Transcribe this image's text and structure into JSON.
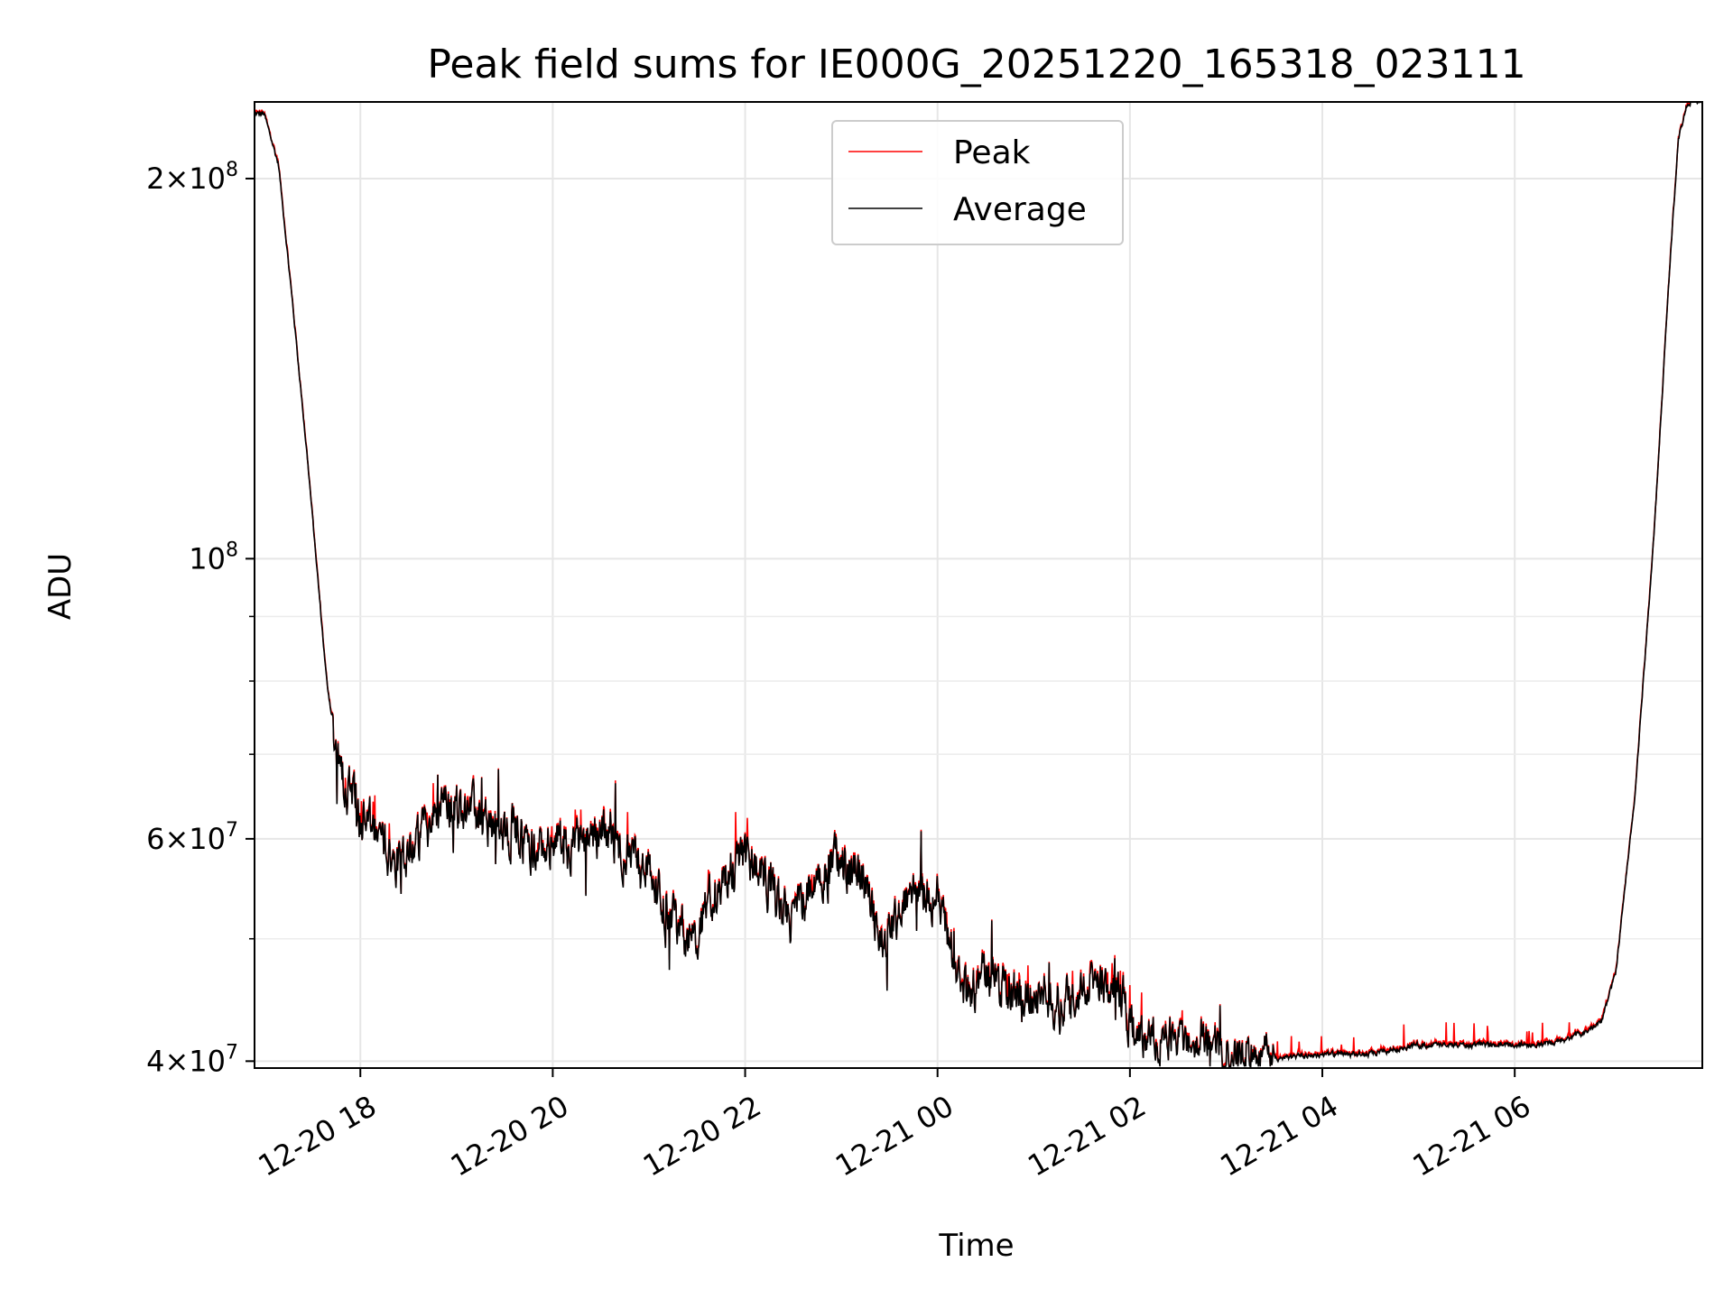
{
  "chart_data": {
    "type": "line",
    "title": "Peak field sums for IE000G_20251220_165318_023111",
    "xlabel": "Time",
    "ylabel": "ADU",
    "yscale": "log",
    "xlim_hours": [
      16.9,
      31.95
    ],
    "ylim": [
      39500000,
      230000000
    ],
    "grid": true,
    "legend_position": "top-center",
    "x_ticks": [
      {
        "hour": 18,
        "label": "12-20 18"
      },
      {
        "hour": 20,
        "label": "12-20 20"
      },
      {
        "hour": 22,
        "label": "12-20 22"
      },
      {
        "hour": 24,
        "label": "12-21 00"
      },
      {
        "hour": 26,
        "label": "12-21 02"
      },
      {
        "hour": 28,
        "label": "12-21 04"
      },
      {
        "hour": 30,
        "label": "12-21 06"
      }
    ],
    "y_major_ticks": [
      {
        "value": 40000000,
        "mantissa": "4",
        "exp": "7"
      },
      {
        "value": 60000000,
        "mantissa": "6",
        "exp": "7"
      },
      {
        "value": 100000000,
        "mantissa": "",
        "exp": "8"
      },
      {
        "value": 200000000,
        "mantissa": "2",
        "exp": "8"
      }
    ],
    "y_minor_ticks": [
      50000000,
      70000000,
      80000000,
      90000000
    ],
    "series": [
      {
        "name": "Peak",
        "color": "#ff0000"
      },
      {
        "name": "Average",
        "color": "#000000"
      }
    ],
    "average_anchors": [
      [
        16.9,
        225000000.0
      ],
      [
        17.0,
        225000000.0
      ],
      [
        17.15,
        205000000.0
      ],
      [
        17.3,
        158000000.0
      ],
      [
        17.45,
        120000000.0
      ],
      [
        17.55,
        98000000.0
      ],
      [
        17.65,
        80000000.0
      ],
      [
        17.75,
        71000000.0
      ],
      [
        17.85,
        66500000.0
      ],
      [
        18.0,
        62500000.0
      ],
      [
        18.2,
        60000000.0
      ],
      [
        18.4,
        58000000.0
      ],
      [
        18.6,
        60000000.0
      ],
      [
        18.8,
        63000000.0
      ],
      [
        19.0,
        64000000.0
      ],
      [
        19.3,
        62000000.0
      ],
      [
        19.6,
        61000000.0
      ],
      [
        19.8,
        59000000.0
      ],
      [
        20.0,
        60000000.0
      ],
      [
        20.2,
        59000000.0
      ],
      [
        20.4,
        60000000.0
      ],
      [
        20.55,
        62000000.0
      ],
      [
        20.75,
        58000000.0
      ],
      [
        21.0,
        56000000.0
      ],
      [
        21.2,
        52000000.0
      ],
      [
        21.45,
        50000000.0
      ],
      [
        21.65,
        54000000.0
      ],
      [
        21.85,
        57000000.0
      ],
      [
        22.0,
        58000000.0
      ],
      [
        22.2,
        56000000.0
      ],
      [
        22.45,
        51500000.0
      ],
      [
        22.7,
        55000000.0
      ],
      [
        22.95,
        57500000.0
      ],
      [
        23.2,
        56000000.0
      ],
      [
        23.45,
        50000000.0
      ],
      [
        23.7,
        54000000.0
      ],
      [
        24.0,
        54000000.0
      ],
      [
        24.15,
        49000000.0
      ],
      [
        24.3,
        45000000.0
      ],
      [
        24.5,
        47000000.0
      ],
      [
        24.75,
        46000000.0
      ],
      [
        24.9,
        44500000.0
      ],
      [
        25.1,
        45500000.0
      ],
      [
        25.3,
        44000000.0
      ],
      [
        25.6,
        46000000.0
      ],
      [
        25.85,
        46500000.0
      ],
      [
        26.0,
        43000000.0
      ],
      [
        26.2,
        41500000.0
      ],
      [
        26.5,
        42000000.0
      ],
      [
        26.8,
        42000000.0
      ],
      [
        27.0,
        40500000.0
      ],
      [
        27.3,
        41000000.0
      ],
      [
        27.5,
        40200000.0
      ],
      [
        28.0,
        40500000.0
      ],
      [
        28.5,
        40500000.0
      ],
      [
        29.0,
        41200000.0
      ],
      [
        29.5,
        41200000.0
      ],
      [
        30.0,
        41200000.0
      ],
      [
        30.4,
        41300000.0
      ],
      [
        30.75,
        42200000.0
      ],
      [
        30.9,
        43000000.0
      ],
      [
        31.05,
        47000000.0
      ],
      [
        31.25,
        65000000.0
      ],
      [
        31.45,
        105000000.0
      ],
      [
        31.6,
        165000000.0
      ],
      [
        31.7,
        215000000.0
      ],
      [
        31.8,
        230000000.0
      ],
      [
        31.95,
        230000000.0
      ]
    ]
  }
}
